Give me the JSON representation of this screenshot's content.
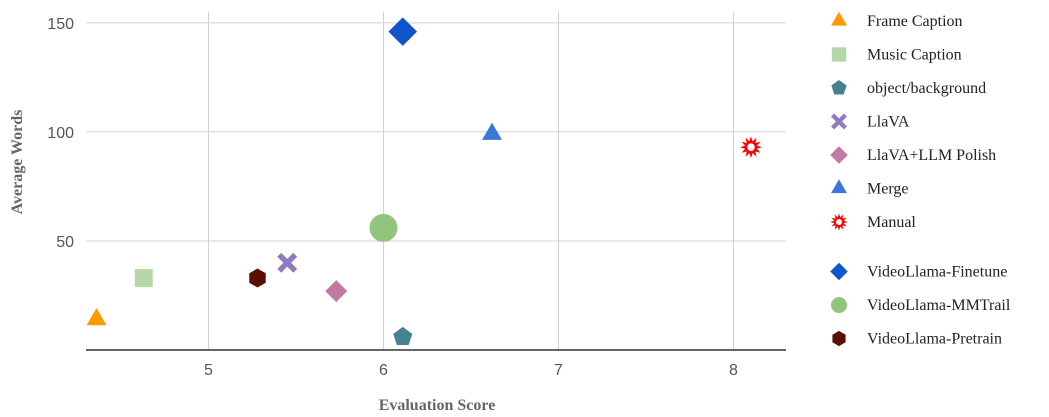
{
  "chart_data": {
    "type": "scatter",
    "xlabel": "Evaluation Score",
    "ylabel": "Average Words",
    "xlim": [
      4.3,
      8.3
    ],
    "ylim": [
      0,
      155
    ],
    "x_ticks": [
      5,
      6,
      7,
      8
    ],
    "y_ticks": [
      50,
      100,
      150
    ],
    "grid": true,
    "legend_position": "right",
    "series": [
      {
        "name": "Frame Caption",
        "marker": "triangle",
        "color": "#ff9900",
        "x": 4.36,
        "y": 14
      },
      {
        "name": "Music Caption",
        "marker": "square",
        "color": "#b6d7a8",
        "x": 4.63,
        "y": 33
      },
      {
        "name": "object/background",
        "marker": "pentagon",
        "color": "#45818e",
        "x": 6.11,
        "y": 6
      },
      {
        "name": "LlaVA",
        "marker": "x",
        "color": "#8e7cc3",
        "x": 5.45,
        "y": 40
      },
      {
        "name": "LlaVA+LLM Polish",
        "marker": "diamond",
        "color": "#c27ba0",
        "x": 5.73,
        "y": 27
      },
      {
        "name": "Merge",
        "marker": "triangle",
        "color": "#3c78d8",
        "x": 6.62,
        "y": 99
      },
      {
        "name": "Manual",
        "marker": "starburst",
        "color": "#ff0000",
        "x": 8.1,
        "y": 93
      },
      {
        "name": "VideoLlama-Finetune",
        "marker": "diamond",
        "color": "#1155cc",
        "x": 6.11,
        "y": 146
      },
      {
        "name": "VideoLlama-MMTrail",
        "marker": "circle",
        "color": "#93c47d",
        "x": 6.0,
        "y": 56
      },
      {
        "name": "VideoLlama-Pretrain",
        "marker": "hexagon",
        "color": "#5b0f00",
        "x": 5.28,
        "y": 33
      }
    ]
  }
}
